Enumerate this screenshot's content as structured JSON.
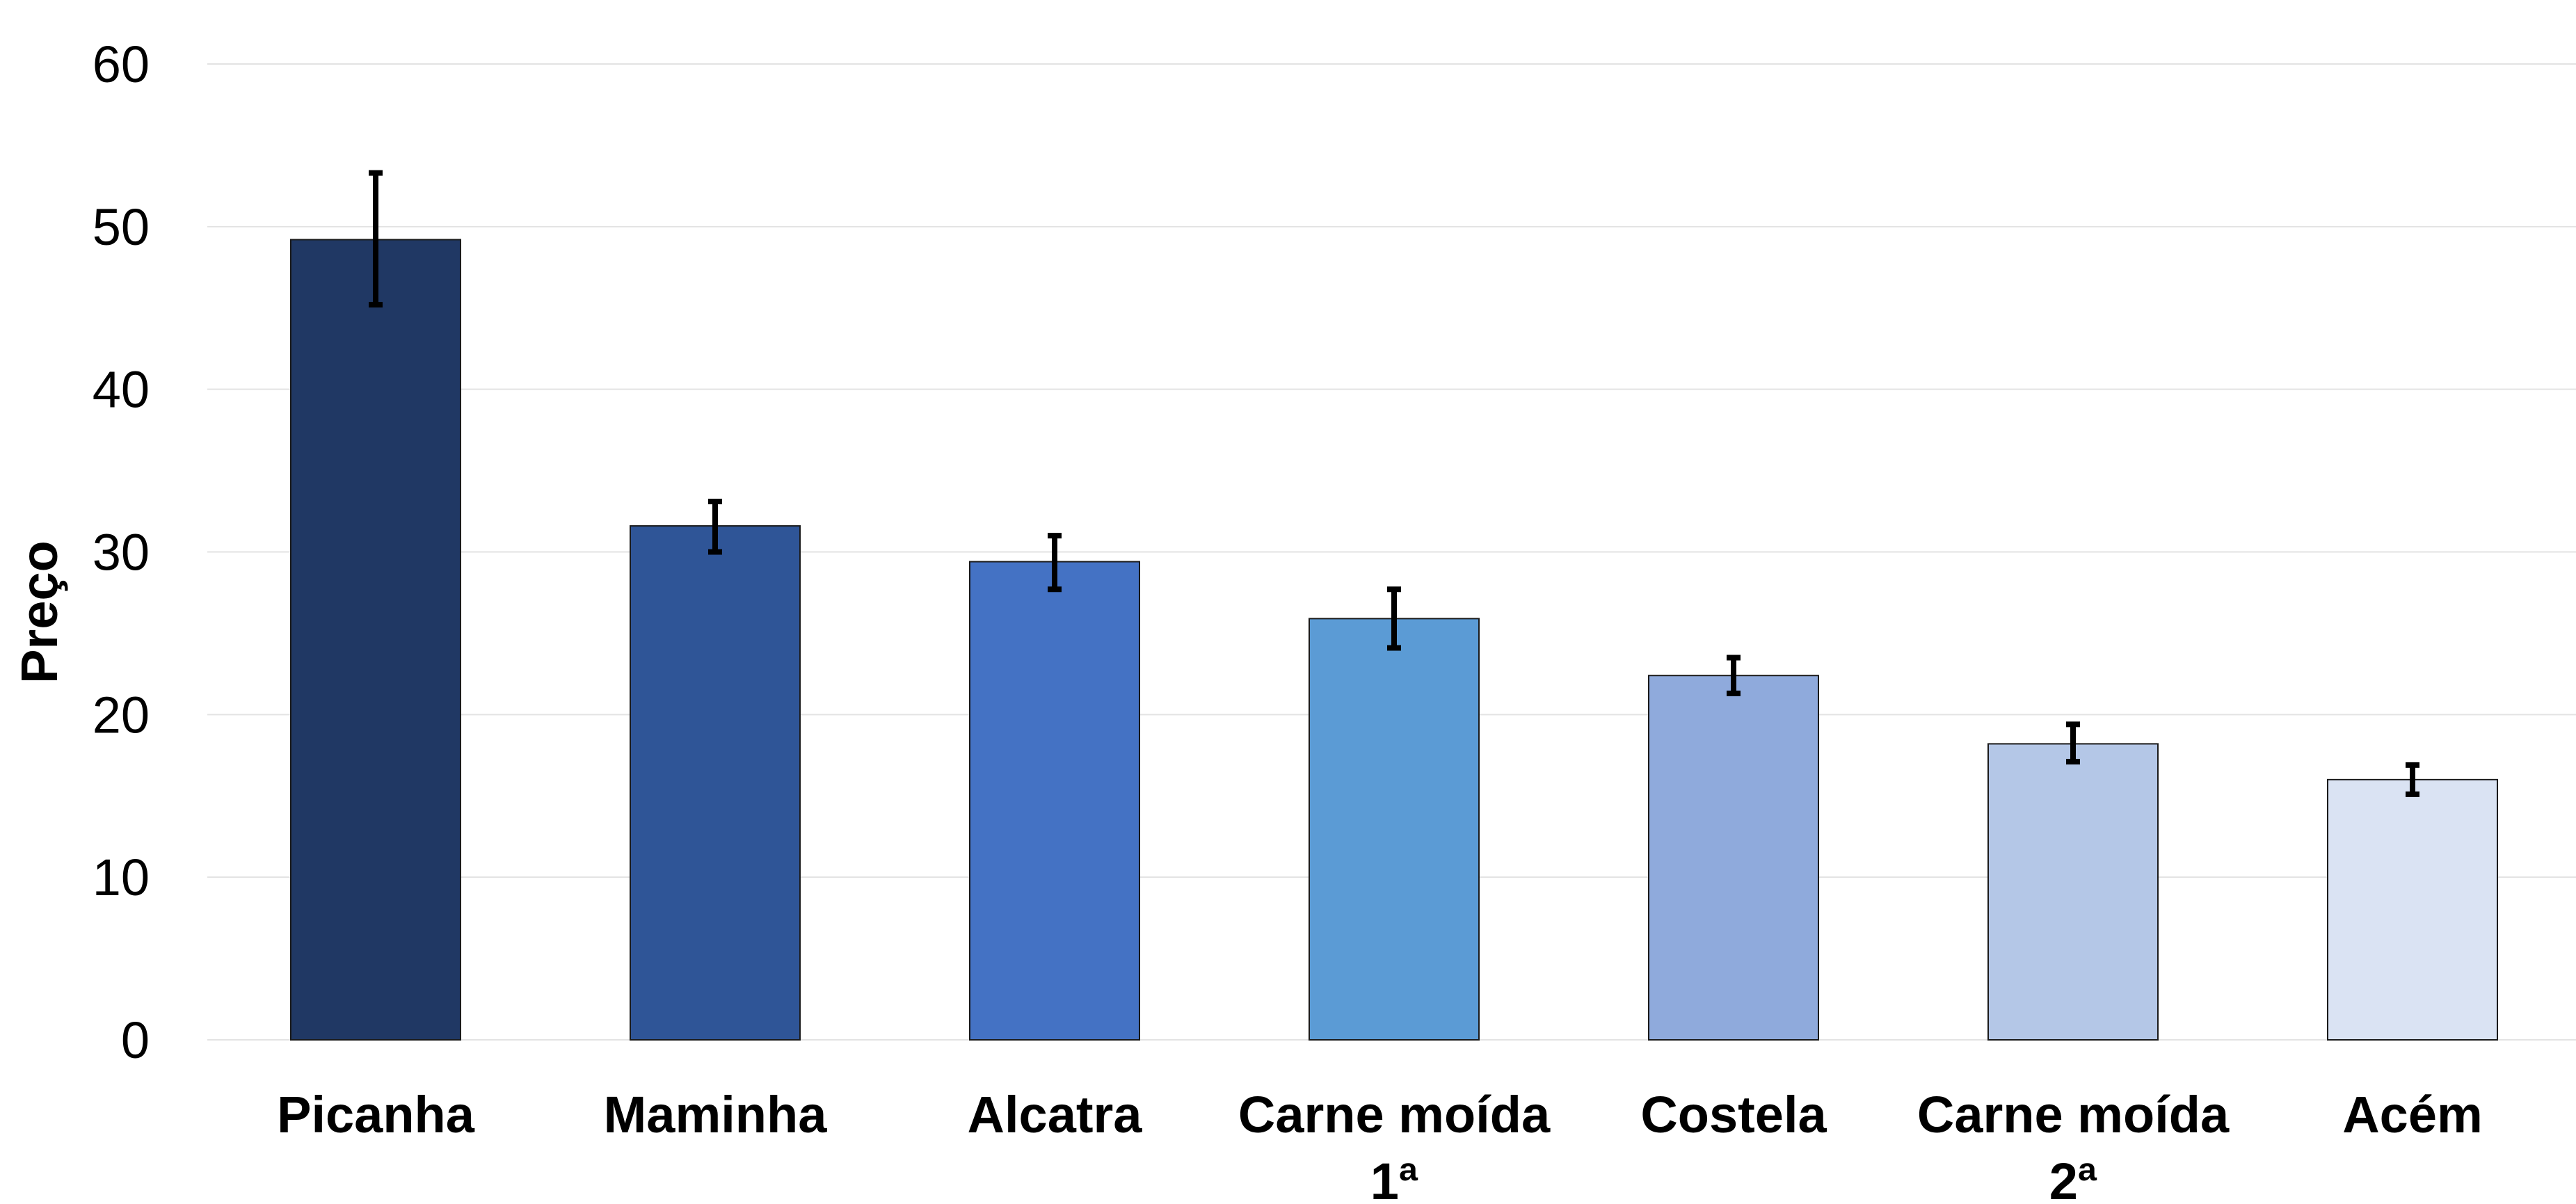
{
  "chart_data": {
    "type": "bar",
    "title": "",
    "xlabel": "",
    "ylabel": "Preço",
    "ylim": [
      0,
      60
    ],
    "yticks": [
      0,
      10,
      20,
      30,
      40,
      50,
      60
    ],
    "grid": true,
    "legend": "none",
    "categories": [
      [
        "Picanha"
      ],
      [
        "Maminha"
      ],
      [
        "Alcatra"
      ],
      [
        "Carne moída",
        "1ª"
      ],
      [
        "Costela"
      ],
      [
        "Carne moída",
        "2ª"
      ],
      [
        "Acém"
      ]
    ],
    "values": [
      49.2,
      31.6,
      29.4,
      25.9,
      22.4,
      18.2,
      16.0
    ],
    "error_low": [
      45.2,
      30.0,
      27.7,
      24.1,
      21.3,
      17.1,
      15.1
    ],
    "error_high": [
      53.3,
      33.1,
      31.0,
      27.7,
      23.5,
      19.4,
      16.9
    ],
    "colors": [
      "#203864",
      "#2f5597",
      "#4472c4",
      "#5b9bd5",
      "#8faadc",
      "#b4c7e7",
      "#dae3f3"
    ]
  }
}
